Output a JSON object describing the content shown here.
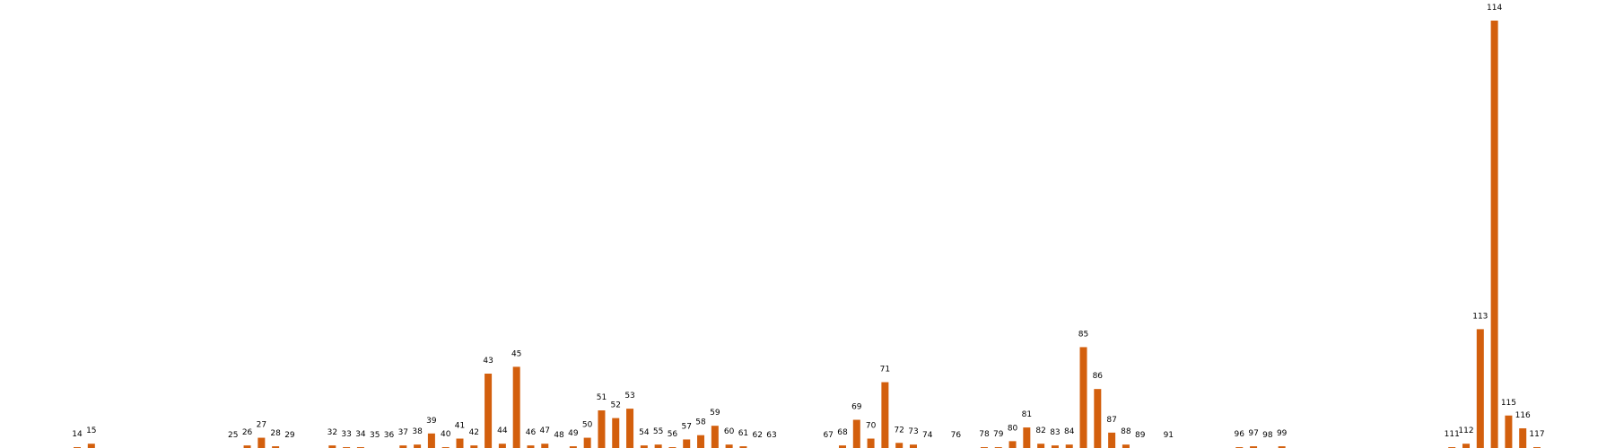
{
  "colors": {
    "bar": "#d35f0d",
    "background": "#ffffff",
    "label": "#000000"
  },
  "chart_data": {
    "type": "bar",
    "title": "",
    "xlabel": "",
    "ylabel": "",
    "axes_visible": false,
    "grid": false,
    "legend": "none",
    "ylim": [
      0,
      1.0
    ],
    "categories": [
      14,
      15,
      25,
      26,
      27,
      28,
      29,
      32,
      33,
      34,
      35,
      36,
      37,
      38,
      39,
      40,
      41,
      42,
      43,
      44,
      45,
      46,
      47,
      48,
      49,
      50,
      51,
      52,
      53,
      54,
      55,
      56,
      57,
      58,
      59,
      60,
      61,
      62,
      63,
      67,
      68,
      69,
      70,
      71,
      72,
      73,
      74,
      76,
      78,
      79,
      80,
      81,
      82,
      83,
      84,
      85,
      86,
      87,
      88,
      89,
      91,
      96,
      97,
      98,
      99,
      111,
      112,
      113,
      114,
      115,
      116,
      117
    ],
    "labels": [
      "14",
      "15",
      "25",
      "26",
      "27",
      "28",
      "29",
      "32",
      "33",
      "34",
      "35",
      "36",
      "37",
      "38",
      "39",
      "40",
      "41",
      "42",
      "43",
      "44",
      "45",
      "46",
      "47",
      "48",
      "49",
      "50",
      "51",
      "52",
      "53",
      "54",
      "55",
      "56",
      "57",
      "58",
      "59",
      "60",
      "61",
      "62",
      "63",
      "67",
      "68",
      "69",
      "70",
      "71",
      "72",
      "73",
      "74",
      "76",
      "78",
      "79",
      "80",
      "81",
      "82",
      "83",
      "84",
      "85",
      "86",
      "87",
      "88",
      "89",
      "91",
      "96",
      "97",
      "98",
      "99",
      "111",
      "112",
      "113",
      "114",
      "115",
      "116",
      "117"
    ],
    "values": [
      0.002,
      0.01,
      0,
      0.006,
      0.024,
      0.004,
      0,
      0.006,
      0.002,
      0.002,
      0,
      0,
      0.006,
      0.008,
      0.034,
      0.002,
      0.022,
      0.006,
      0.174,
      0.01,
      0.19,
      0.006,
      0.01,
      0,
      0.004,
      0.024,
      0.088,
      0.07,
      0.092,
      0.006,
      0.008,
      0.002,
      0.02,
      0.03,
      0.052,
      0.008,
      0.004,
      0,
      0,
      0,
      0.006,
      0.066,
      0.022,
      0.154,
      0.012,
      0.008,
      0,
      0,
      0.002,
      0.002,
      0.016,
      0.048,
      0.01,
      0.006,
      0.008,
      0.236,
      0.138,
      0.036,
      0.008,
      0,
      0,
      0.002,
      0.004,
      0,
      0.004,
      0.002,
      0.01,
      0.278,
      1.0,
      0.076,
      0.046,
      0.002
    ]
  }
}
